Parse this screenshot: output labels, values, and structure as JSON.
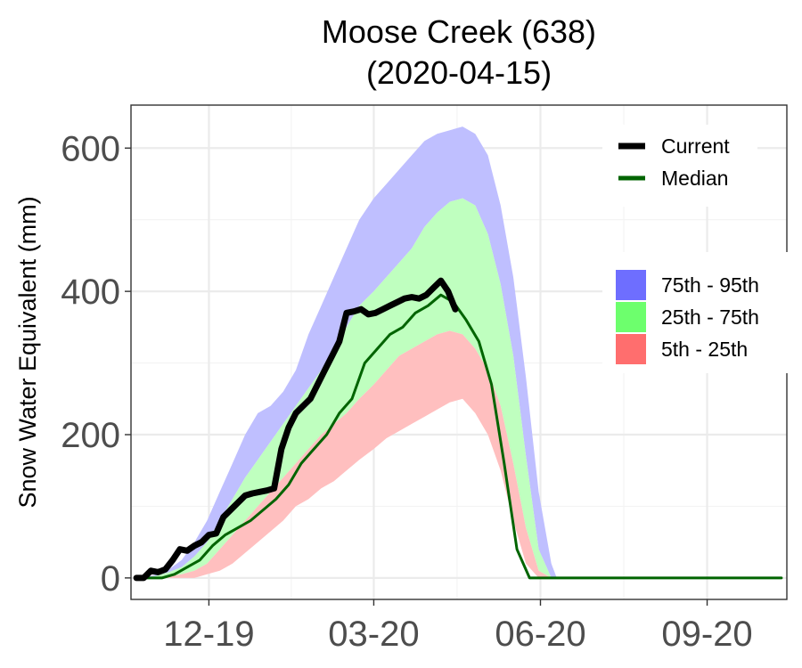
{
  "chart_data": {
    "type": "area",
    "title_line1": "Moose Creek (638)",
    "title_line2": "(2020-04-15)",
    "ylabel": "Snow Water Equivalent (mm)",
    "xlabel": "",
    "ylim": [
      -30,
      660
    ],
    "xlim": [
      "2019-10-19",
      "2020-10-15"
    ],
    "y_ticks": [
      0,
      200,
      400,
      600
    ],
    "y_tick_labels": [
      "0",
      "200",
      "400",
      "600"
    ],
    "x_ticks": [
      "2019-12-01",
      "2020-03-01",
      "2020-06-01",
      "2020-09-01"
    ],
    "x_tick_labels": [
      "12-19",
      "03-20",
      "06-20",
      "09-20"
    ],
    "grid": true,
    "legend_placement": "right",
    "legend_lines": [
      {
        "label": "Current",
        "color": "#000000"
      },
      {
        "label": "Median",
        "color": "#006400"
      }
    ],
    "legend_bands": [
      {
        "label": "75th - 95th",
        "color": "#6e6eff"
      },
      {
        "label": "25th - 75th",
        "color": "#6dff6d"
      },
      {
        "label": "5th - 25th",
        "color": "#ff6e6e"
      }
    ],
    "colors": {
      "band_95": "#bfbfff",
      "band_75": "#bfffbf",
      "band_25": "#ffbfbf",
      "current": "#000000",
      "median": "#006400"
    },
    "percentiles": {
      "x": [
        "2019-10-26",
        "2019-11-02",
        "2019-11-09",
        "2019-11-16",
        "2019-11-23",
        "2019-11-30",
        "2019-12-07",
        "2019-12-14",
        "2019-12-21",
        "2019-12-28",
        "2020-01-04",
        "2020-01-11",
        "2020-01-18",
        "2020-01-25",
        "2020-02-01",
        "2020-02-08",
        "2020-02-15",
        "2020-02-22",
        "2020-03-01",
        "2020-03-08",
        "2020-03-15",
        "2020-03-22",
        "2020-03-29",
        "2020-04-05",
        "2020-04-12",
        "2020-04-19",
        "2020-04-26",
        "2020-05-03",
        "2020-05-10",
        "2020-05-17",
        "2020-05-24",
        "2020-05-31",
        "2020-06-07",
        "2020-06-10",
        "2020-06-14"
      ],
      "p05": [
        0,
        0,
        0,
        0,
        0,
        5,
        10,
        20,
        35,
        50,
        65,
        80,
        100,
        110,
        125,
        135,
        150,
        165,
        180,
        195,
        205,
        215,
        225,
        235,
        245,
        250,
        230,
        200,
        150,
        80,
        20,
        0,
        0,
        0,
        0
      ],
      "p25": [
        0,
        0,
        2,
        5,
        10,
        20,
        40,
        60,
        80,
        100,
        120,
        140,
        160,
        180,
        200,
        215,
        230,
        250,
        270,
        290,
        310,
        320,
        330,
        340,
        345,
        340,
        320,
        290,
        240,
        160,
        70,
        10,
        0,
        0,
        0
      ],
      "p75": [
        0,
        3,
        8,
        15,
        30,
        50,
        80,
        110,
        140,
        165,
        190,
        215,
        240,
        265,
        290,
        320,
        350,
        380,
        400,
        420,
        440,
        460,
        490,
        510,
        525,
        530,
        520,
        480,
        410,
        310,
        170,
        40,
        0,
        0,
        0
      ],
      "p95": [
        0,
        5,
        12,
        25,
        50,
        80,
        120,
        160,
        200,
        230,
        240,
        260,
        290,
        340,
        380,
        420,
        460,
        500,
        530,
        550,
        570,
        590,
        610,
        620,
        625,
        630,
        620,
        590,
        520,
        420,
        280,
        120,
        20,
        0,
        0
      ]
    },
    "series": [
      {
        "name": "Current",
        "x": [
          "2019-10-22",
          "2019-10-26",
          "2019-10-30",
          "2019-11-03",
          "2019-11-07",
          "2019-11-11",
          "2019-11-15",
          "2019-11-19",
          "2019-11-23",
          "2019-11-27",
          "2019-12-01",
          "2019-12-05",
          "2019-12-09",
          "2019-12-13",
          "2019-12-17",
          "2019-12-21",
          "2019-12-25",
          "2019-12-29",
          "2020-01-02",
          "2020-01-06",
          "2020-01-10",
          "2020-01-14",
          "2020-01-18",
          "2020-01-22",
          "2020-01-26",
          "2020-01-30",
          "2020-02-03",
          "2020-02-07",
          "2020-02-11",
          "2020-02-15",
          "2020-02-19",
          "2020-02-23",
          "2020-02-27",
          "2020-03-02",
          "2020-03-06",
          "2020-03-10",
          "2020-03-14",
          "2020-03-18",
          "2020-03-22",
          "2020-03-26",
          "2020-03-30",
          "2020-04-03",
          "2020-04-07",
          "2020-04-11",
          "2020-04-15"
        ],
        "values": [
          0,
          0,
          10,
          8,
          12,
          25,
          40,
          38,
          45,
          50,
          60,
          62,
          85,
          95,
          105,
          115,
          118,
          120,
          122,
          125,
          180,
          210,
          230,
          240,
          250,
          270,
          290,
          310,
          330,
          370,
          372,
          375,
          368,
          370,
          375,
          380,
          385,
          390,
          392,
          390,
          395,
          405,
          415,
          400,
          375
        ]
      },
      {
        "name": "Median",
        "x": [
          "2019-10-22",
          "2019-10-29",
          "2019-11-05",
          "2019-11-12",
          "2019-11-19",
          "2019-11-26",
          "2019-12-03",
          "2019-12-10",
          "2019-12-17",
          "2019-12-24",
          "2019-12-31",
          "2020-01-07",
          "2020-01-14",
          "2020-01-21",
          "2020-01-28",
          "2020-02-04",
          "2020-02-11",
          "2020-02-18",
          "2020-02-25",
          "2020-03-03",
          "2020-03-10",
          "2020-03-17",
          "2020-03-24",
          "2020-03-31",
          "2020-04-07",
          "2020-04-14",
          "2020-04-21",
          "2020-04-28",
          "2020-05-05",
          "2020-05-12",
          "2020-05-19",
          "2020-05-26",
          "2020-06-02",
          "2020-06-30",
          "2020-07-31",
          "2020-08-31",
          "2020-09-30",
          "2020-10-12"
        ],
        "values": [
          0,
          0,
          0,
          5,
          15,
          25,
          45,
          60,
          70,
          80,
          95,
          110,
          130,
          160,
          180,
          200,
          230,
          250,
          300,
          320,
          340,
          350,
          370,
          380,
          395,
          385,
          360,
          330,
          270,
          160,
          40,
          0,
          0,
          0,
          0,
          0,
          0,
          0
        ]
      }
    ]
  }
}
